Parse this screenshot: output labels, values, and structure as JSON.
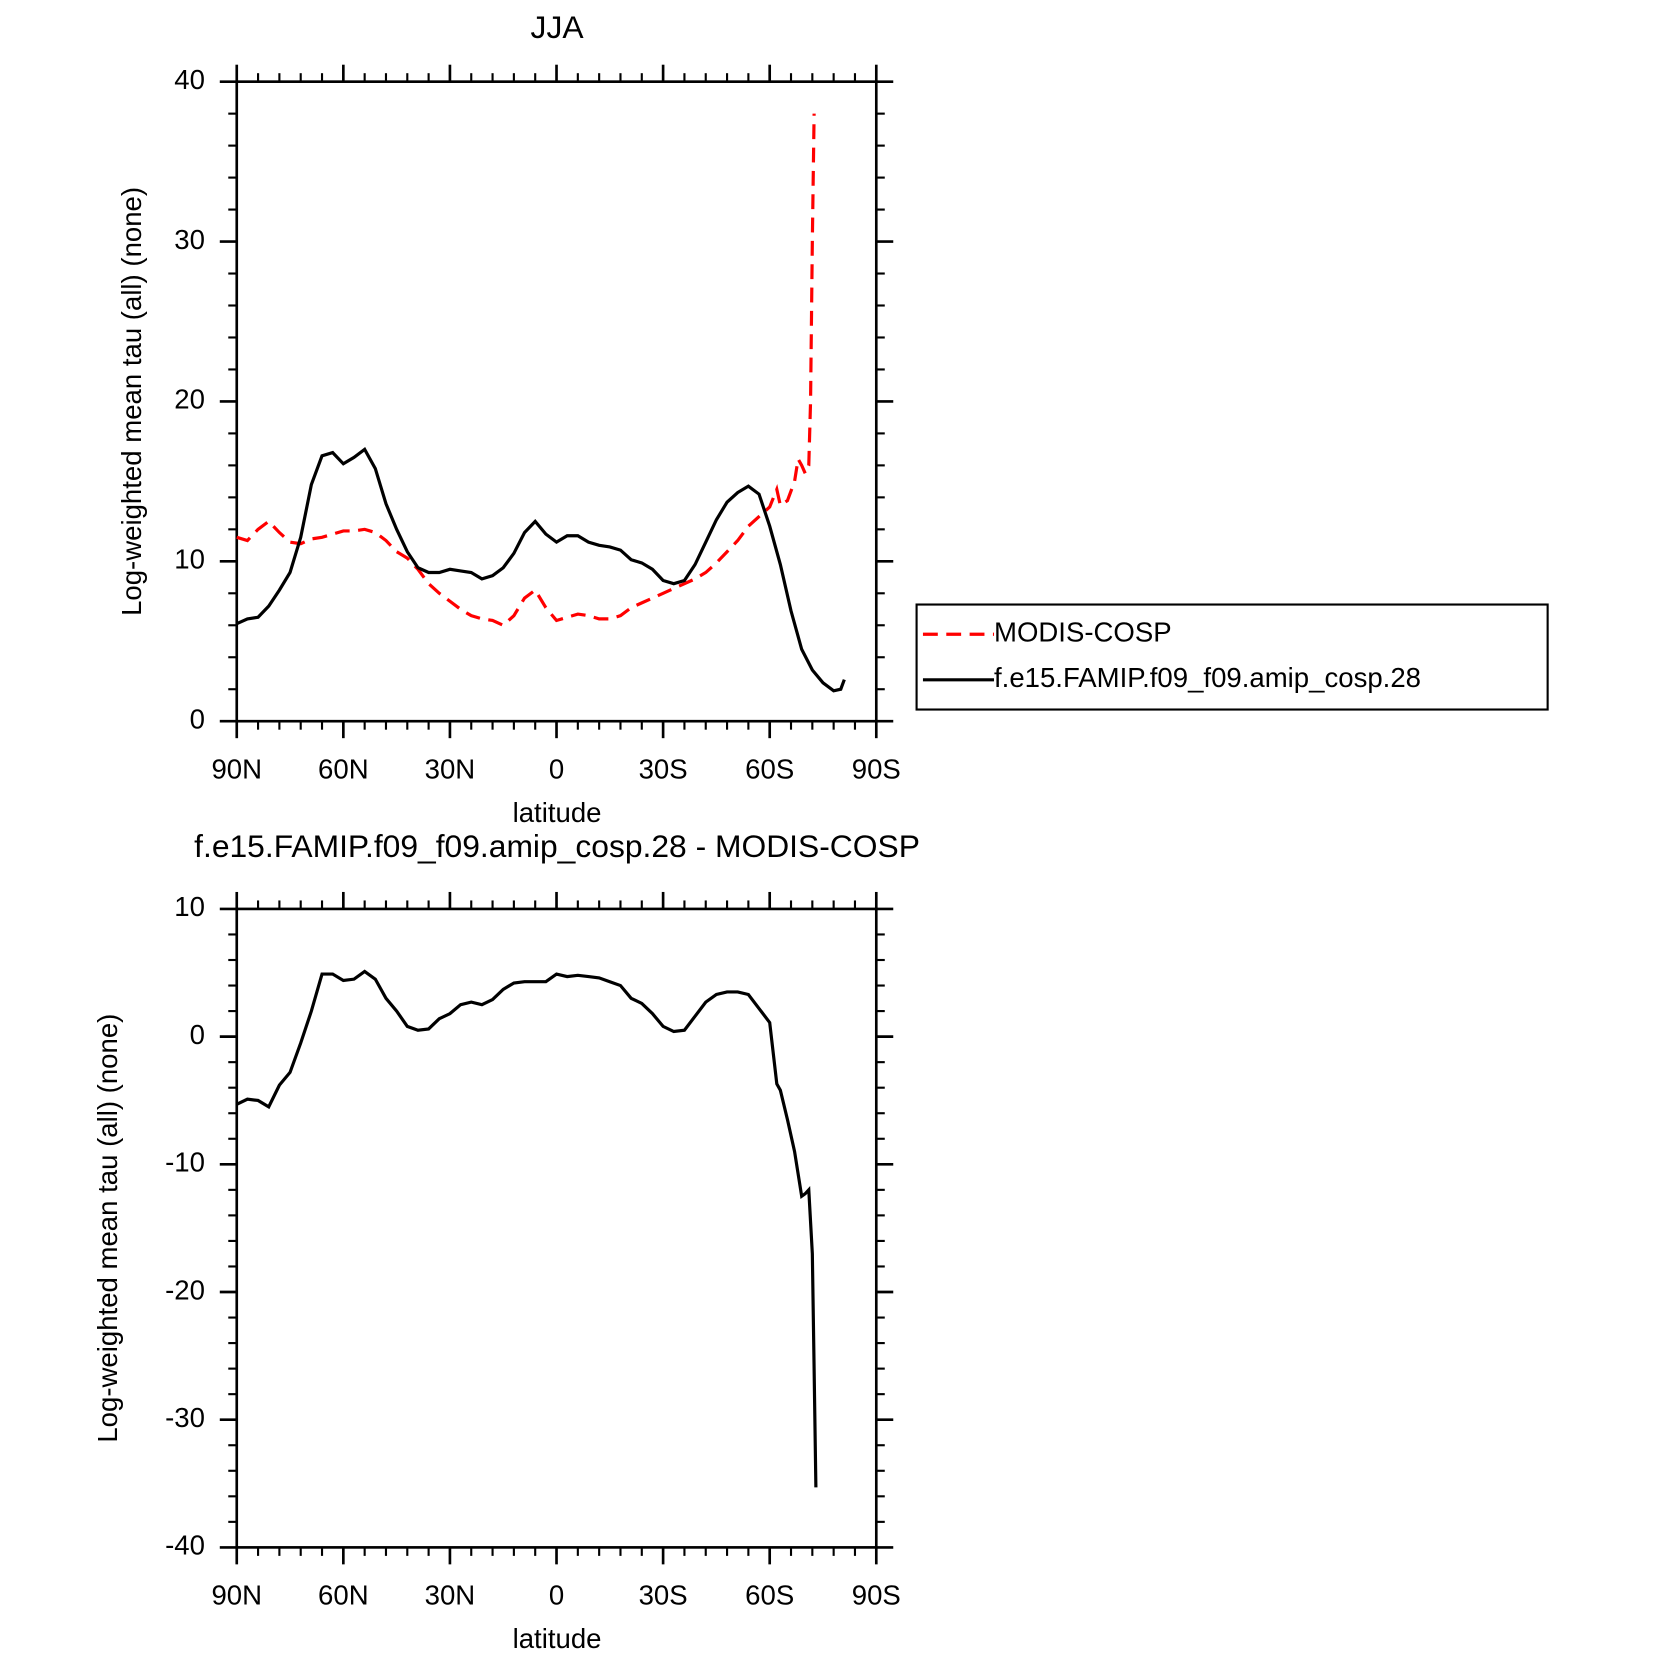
{
  "chart_data": [
    {
      "type": "line",
      "title": "JJA",
      "xlabel": "latitude",
      "ylabel": "Log-weighted mean tau (all) (none)",
      "xlim": [
        90,
        -90
      ],
      "ylim": [
        0,
        40
      ],
      "xticks": [
        {
          "value": 90,
          "label": "90N"
        },
        {
          "value": 60,
          "label": "60N"
        },
        {
          "value": 30,
          "label": "30N"
        },
        0,
        {
          "value": -30,
          "label": "30S"
        },
        {
          "value": -60,
          "label": "60S"
        },
        {
          "value": -90,
          "label": "90S"
        }
      ],
      "yticks": [
        0,
        10,
        20,
        30,
        40
      ],
      "legend": "right",
      "series": [
        {
          "name": "MODIS-COSP",
          "color": "#ff0000",
          "linestyle": "dashed",
          "x": [
            90,
            87,
            84,
            81,
            78,
            75,
            72,
            69,
            66,
            63,
            60,
            57,
            54,
            51,
            48,
            45,
            42,
            39,
            36,
            33,
            30,
            27,
            24,
            21,
            18,
            15,
            12,
            9,
            6,
            3,
            0,
            -3,
            -6,
            -9,
            -12,
            -15,
            -18,
            -21,
            -24,
            -27,
            -30,
            -33,
            -36,
            -39,
            -42,
            -45,
            -48,
            -51,
            -54,
            -57,
            -60,
            -62,
            -63,
            -65,
            -67,
            -68,
            -69,
            -70,
            -71,
            -71.5,
            -72,
            -72.5
          ],
          "values": [
            11.5,
            11.3,
            12.0,
            12.5,
            11.8,
            11.2,
            11.1,
            11.4,
            11.5,
            11.7,
            11.9,
            11.9,
            12.0,
            11.8,
            11.3,
            10.6,
            10.2,
            9.5,
            8.6,
            8.0,
            7.5,
            7.0,
            6.6,
            6.4,
            6.3,
            6.0,
            6.6,
            7.7,
            8.2,
            7.1,
            6.3,
            6.5,
            6.7,
            6.6,
            6.4,
            6.4,
            6.6,
            7.1,
            7.4,
            7.7,
            8.0,
            8.3,
            8.6,
            8.9,
            9.3,
            9.9,
            10.6,
            11.3,
            12.2,
            12.8,
            13.4,
            14.5,
            13.5,
            13.8,
            15.0,
            16.4,
            16.0,
            15.5,
            16.0,
            20,
            30,
            38
          ]
        },
        {
          "name": "f.e15.FAMIP.f09_f09.amip_cosp.28",
          "color": "#000000",
          "linestyle": "solid",
          "x": [
            90,
            87,
            84,
            81,
            78,
            75,
            72,
            69,
            66,
            63,
            60,
            57,
            54,
            51,
            48,
            45,
            42,
            39,
            36,
            33,
            30,
            27,
            24,
            21,
            18,
            15,
            12,
            9,
            6,
            3,
            0,
            -3,
            -6,
            -9,
            -12,
            -15,
            -18,
            -21,
            -24,
            -27,
            -30,
            -33,
            -36,
            -39,
            -42,
            -45,
            -48,
            -51,
            -54,
            -57,
            -60,
            -63,
            -66,
            -69,
            -72,
            -75,
            -78,
            -80,
            -81
          ],
          "values": [
            6.1,
            6.4,
            6.5,
            7.2,
            8.2,
            9.3,
            11.5,
            14.8,
            16.6,
            16.8,
            16.1,
            16.5,
            17.0,
            15.8,
            13.6,
            12.0,
            10.6,
            9.6,
            9.3,
            9.3,
            9.5,
            9.4,
            9.3,
            8.9,
            9.1,
            9.6,
            10.5,
            11.8,
            12.5,
            11.7,
            11.2,
            11.6,
            11.6,
            11.2,
            11.0,
            10.9,
            10.7,
            10.1,
            9.9,
            9.5,
            8.8,
            8.6,
            8.8,
            9.8,
            11.2,
            12.6,
            13.7,
            14.3,
            14.7,
            14.2,
            12.2,
            9.8,
            6.9,
            4.5,
            3.2,
            2.4,
            1.9,
            2.0,
            2.6
          ]
        }
      ]
    },
    {
      "type": "line",
      "title": "f.e15.FAMIP.f09_f09.amip_cosp.28 - MODIS-COSP",
      "xlabel": "latitude",
      "ylabel": "Log-weighted mean tau (all) (none)",
      "xlim": [
        90,
        -90
      ],
      "ylim": [
        -40,
        10
      ],
      "xticks": [
        {
          "value": 90,
          "label": "90N"
        },
        {
          "value": 60,
          "label": "60N"
        },
        {
          "value": 30,
          "label": "30N"
        },
        0,
        {
          "value": -30,
          "label": "30S"
        },
        {
          "value": -60,
          "label": "60S"
        },
        {
          "value": -90,
          "label": "90S"
        }
      ],
      "yticks": [
        -40,
        -30,
        -20,
        -10,
        0,
        10
      ],
      "series": [
        {
          "color": "#000000",
          "linestyle": "solid",
          "x": [
            90,
            87,
            84,
            81,
            78,
            75,
            72,
            69,
            66,
            63,
            60,
            57,
            54,
            51,
            48,
            45,
            42,
            39,
            36,
            33,
            30,
            27,
            24,
            21,
            18,
            15,
            12,
            9,
            6,
            3,
            0,
            -3,
            -6,
            -9,
            -12,
            -15,
            -18,
            -21,
            -24,
            -27,
            -30,
            -33,
            -36,
            -39,
            -42,
            -45,
            -48,
            -51,
            -54,
            -57,
            -60,
            -62,
            -63,
            -65,
            -67,
            -69,
            -70,
            -71,
            -72,
            -72.5,
            -73
          ],
          "values": [
            -5.3,
            -4.9,
            -5.0,
            -5.5,
            -3.8,
            -2.8,
            -0.5,
            2.0,
            4.9,
            4.9,
            4.4,
            4.5,
            5.1,
            4.5,
            3.0,
            2.0,
            0.8,
            0.5,
            0.6,
            1.4,
            1.8,
            2.5,
            2.7,
            2.5,
            2.9,
            3.7,
            4.2,
            4.3,
            4.3,
            4.3,
            4.9,
            4.7,
            4.8,
            4.7,
            4.6,
            4.3,
            4.0,
            3.0,
            2.6,
            1.8,
            0.8,
            0.4,
            0.5,
            1.6,
            2.7,
            3.3,
            3.5,
            3.5,
            3.3,
            2.2,
            1.1,
            -3.7,
            -4.2,
            -6.5,
            -9.0,
            -12.5,
            -12.3,
            -12.0,
            -17,
            -26,
            -35.3
          ]
        }
      ]
    }
  ]
}
